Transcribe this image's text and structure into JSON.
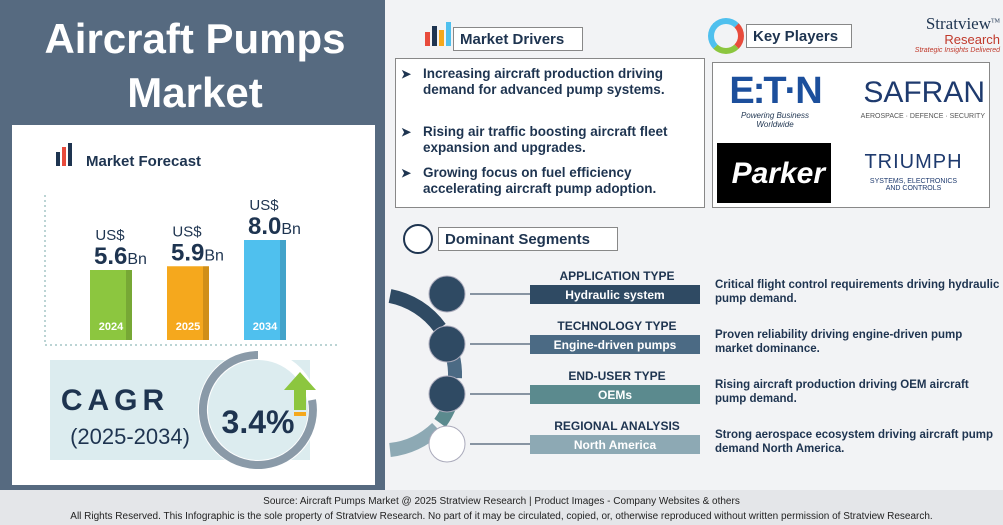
{
  "title": "Aircraft Pumps Market",
  "forecast": {
    "heading": "Market Forecast",
    "currency": "US$",
    "unit": "Bn",
    "years": [
      "2024",
      "2025",
      "2034"
    ],
    "values": [
      5.6,
      5.9,
      8.0
    ],
    "value_labels": [
      "5.6",
      "5.9",
      "8.0"
    ],
    "colors": [
      "#8cc63f",
      "#f5a81d",
      "#4fc0ee"
    ]
  },
  "cagr": {
    "label": "CAGR",
    "period": "(2025-2034)",
    "value": "3.4%"
  },
  "market_drivers": {
    "heading": "Market Drivers",
    "items": [
      "Increasing aircraft production driving demand for advanced pump systems.",
      "Rising air traffic boosting aircraft fleet expansion and upgrades.",
      "Growing focus on fuel efficiency accelerating aircraft pump adoption."
    ]
  },
  "key_players": {
    "heading": "Key Players",
    "eaton": "E:T·N",
    "eaton_tag": "Powering Business Worldwide",
    "safran": "SAFRAN",
    "safran_tag": "AEROSPACE · DEFENCE · SECURITY",
    "parker": "Parker",
    "triumph": "TRIUMPH",
    "triumph_tag": "SYSTEMS, ELECTRONICS AND CONTROLS"
  },
  "brand": {
    "name": "Stratview",
    "sub": "Research",
    "tagline": "Strategic Insights Delivered",
    "tm": "TM"
  },
  "dominant_segments": {
    "heading": "Dominant Segments",
    "segments": [
      {
        "type": "APPLICATION TYPE",
        "value": "Hydraulic system",
        "description": "Critical flight control requirements driving hydraulic pump demand."
      },
      {
        "type": "TECHNOLOGY TYPE",
        "value": "Engine-driven pumps",
        "description": "Proven reliability driving engine-driven pump market dominance."
      },
      {
        "type": "END-USER TYPE",
        "value": "OEMs",
        "description": "Rising aircraft production driving OEM aircraft pump demand."
      },
      {
        "type": "REGIONAL ANALYSIS",
        "value": "North America",
        "description": "Strong aerospace ecosystem driving aircraft pump demand North America."
      }
    ]
  },
  "footer": {
    "source": "Source:  Aircraft Pumps Market @ 2025 Stratview Research | Product Images  - Company Websites & others",
    "rights": "All Rights Reserved. This Infographic is the sole property of Stratview Research. No part of it may be circulated, copied, or, otherwise reproduced without written permission of Stratview Research."
  }
}
